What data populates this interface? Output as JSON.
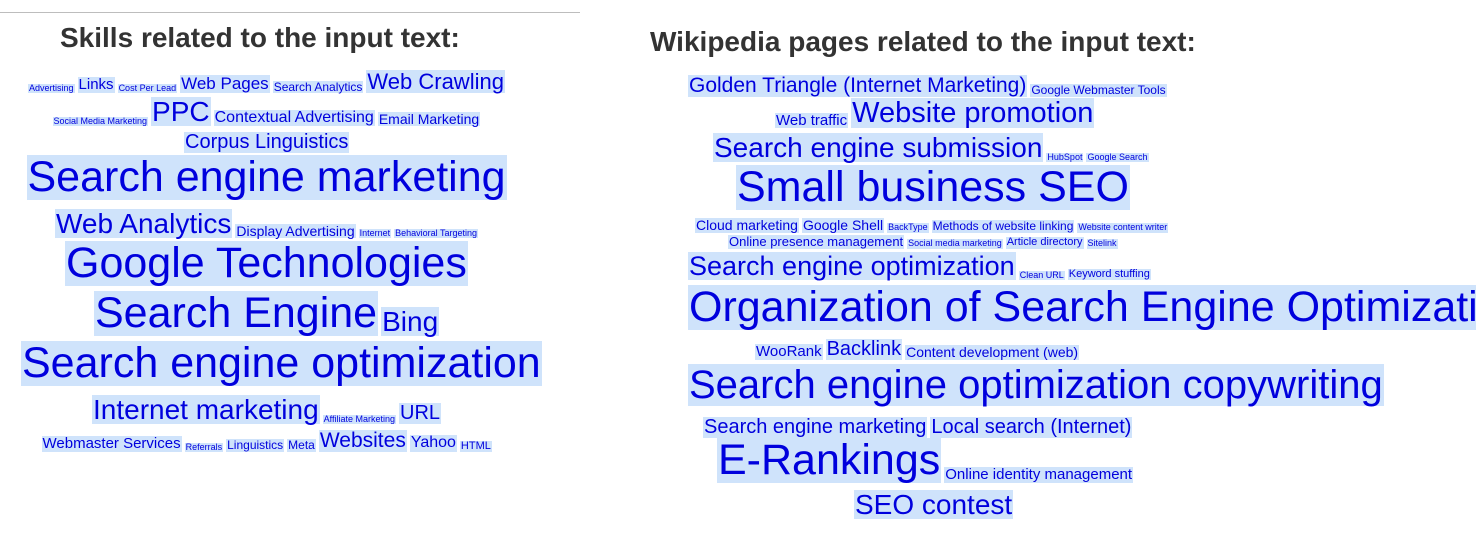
{
  "skills_panel": {
    "title": "Skills related to the input text:",
    "lines": [
      [
        {
          "text": "Advertising",
          "size": 9
        },
        {
          "text": "Links",
          "size": 15
        },
        {
          "text": "Cost Per Lead",
          "size": 9
        },
        {
          "text": "Web Pages",
          "size": 17
        },
        {
          "text": "Search Analytics",
          "size": 12
        },
        {
          "text": "Web Crawling",
          "size": 22
        }
      ],
      [
        {
          "text": "Social Media Marketing",
          "size": 9
        },
        {
          "text": "PPC",
          "size": 28
        },
        {
          "text": "Contextual Advertising",
          "size": 16
        },
        {
          "text": "Email Marketing",
          "size": 14
        }
      ],
      [
        {
          "text": "Corpus Linguistics",
          "size": 20
        }
      ],
      [
        {
          "text": "Search engine marketing",
          "size": 43
        }
      ],
      [
        {
          "text": "Web Analytics",
          "size": 28
        },
        {
          "text": "Display Advertising",
          "size": 14
        },
        {
          "text": "Internet",
          "size": 9
        },
        {
          "text": "Behavioral Targeting",
          "size": 9
        }
      ],
      [
        {
          "text": "Google Technologies",
          "size": 43
        }
      ],
      [
        {
          "text": "Search Engine",
          "size": 43
        },
        {
          "text": "Bing",
          "size": 28
        }
      ],
      [
        {
          "text": "Search engine optimization",
          "size": 43
        }
      ],
      [
        {
          "text": "Internet marketing",
          "size": 28
        },
        {
          "text": "Affiliate Marketing",
          "size": 9
        },
        {
          "text": "URL",
          "size": 20
        }
      ],
      [
        {
          "text": "Webmaster Services",
          "size": 15
        },
        {
          "text": "Referrals",
          "size": 9
        },
        {
          "text": "Linguistics",
          "size": 12
        },
        {
          "text": "Meta",
          "size": 12
        },
        {
          "text": "Websites",
          "size": 21
        },
        {
          "text": "Yahoo",
          "size": 16
        },
        {
          "text": "HTML",
          "size": 11
        }
      ]
    ]
  },
  "wiki_panel": {
    "title": "Wikipedia pages related to the input text:",
    "lines": [
      [
        {
          "text": "Golden Triangle (Internet Marketing)",
          "size": 21
        },
        {
          "text": "Google Webmaster Tools",
          "size": 12
        }
      ],
      [
        {
          "text": "Web traffic",
          "size": 15
        },
        {
          "text": "Website promotion",
          "size": 29
        }
      ],
      [
        {
          "text": "Search engine submission",
          "size": 28
        },
        {
          "text": "HubSpot",
          "size": 9
        },
        {
          "text": "Google Search",
          "size": 9
        }
      ],
      [
        {
          "text": "Small business SEO",
          "size": 43
        }
      ],
      [
        {
          "text": "Cloud marketing",
          "size": 14
        },
        {
          "text": "Google Shell",
          "size": 14
        },
        {
          "text": "BackType",
          "size": 9
        },
        {
          "text": "Methods of website linking",
          "size": 12
        },
        {
          "text": "Website content writer",
          "size": 9
        }
      ],
      [
        {
          "text": "Online presence management",
          "size": 13
        },
        {
          "text": "Social media marketing",
          "size": 9
        },
        {
          "text": "Article directory",
          "size": 11
        },
        {
          "text": "Sitelink",
          "size": 9
        }
      ],
      [
        {
          "text": "Search engine optimization",
          "size": 27
        },
        {
          "text": "Clean URL",
          "size": 9
        },
        {
          "text": "Keyword stuffing",
          "size": 11
        }
      ],
      [
        {
          "text": "Organization of Search Engine Optimization",
          "size": 43
        }
      ],
      [
        {
          "text": "WooRank",
          "size": 15
        },
        {
          "text": "Backlink",
          "size": 20
        },
        {
          "text": "Content development (web)",
          "size": 14
        }
      ],
      [
        {
          "text": "Search engine optimization copywriting",
          "size": 40
        }
      ],
      [
        {
          "text": "Search engine marketing",
          "size": 20
        },
        {
          "text": "Local search (Internet)",
          "size": 20
        }
      ],
      [
        {
          "text": "E-Rankings",
          "size": 43
        },
        {
          "text": "Online identity management",
          "size": 15
        }
      ],
      [
        {
          "text": "SEO contest",
          "size": 28
        }
      ]
    ]
  }
}
